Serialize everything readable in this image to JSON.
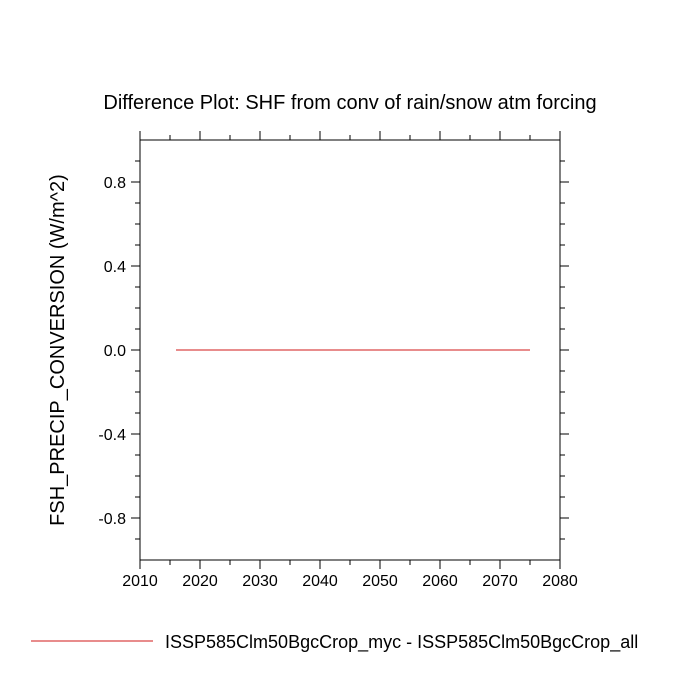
{
  "chart_data": {
    "type": "line",
    "title": "Difference Plot: SHF from conv of rain/snow atm forcing",
    "xlabel": "",
    "ylabel": "FSH_PRECIP_CONVERSION  (W/m^2)",
    "xlim": [
      2010,
      2080
    ],
    "ylim": [
      -1,
      1
    ],
    "x_ticks": [
      2010,
      2020,
      2030,
      2040,
      2050,
      2060,
      2070,
      2080
    ],
    "x_tick_labels": [
      "2010",
      "2020",
      "2030",
      "2040",
      "2050",
      "2060",
      "2070",
      "2080"
    ],
    "y_ticks": [
      0.8,
      0.4,
      0.0,
      -0.4,
      -0.8
    ],
    "y_tick_labels": [
      "0.8",
      "0.4",
      "0.0",
      "-0.4",
      "-0.8"
    ],
    "grid": false,
    "legend_position": "bottom",
    "series": [
      {
        "name": "ISSP585Clm50BgcCrop_myc - ISSP585Clm50BgcCrop_all",
        "color": "#e06666",
        "x": [
          2016,
          2075
        ],
        "y": [
          0.0,
          0.0
        ]
      }
    ]
  }
}
